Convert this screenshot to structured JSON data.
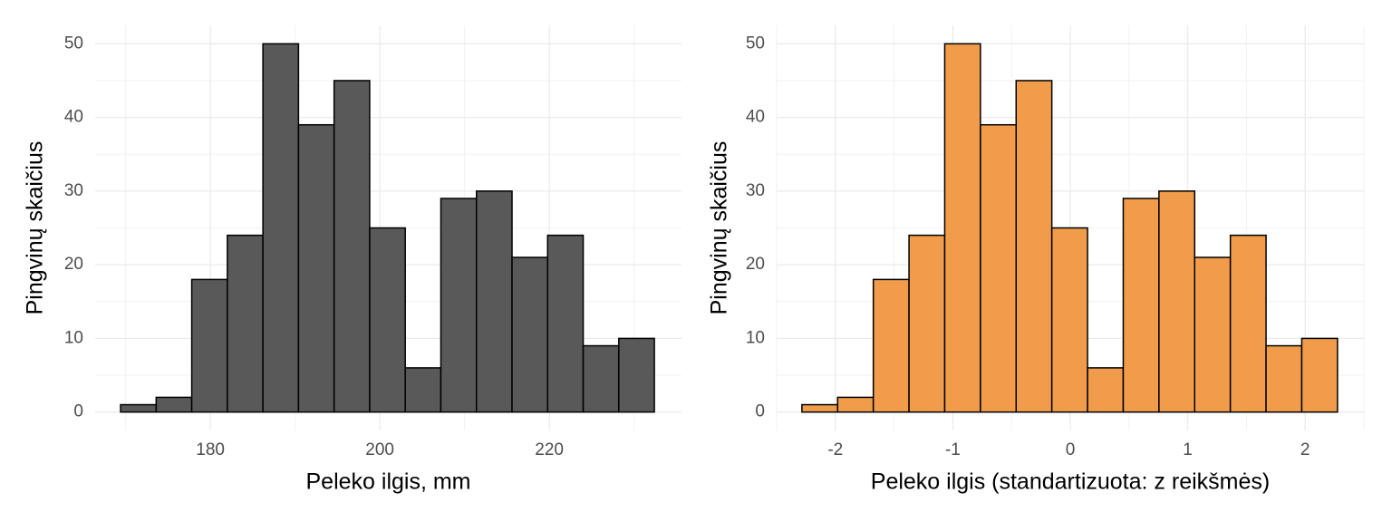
{
  "chart_data": [
    {
      "type": "histogram",
      "xlabel": "Peleko ilgis, mm",
      "ylabel": "Pingvinų skaičius",
      "bins": [
        169.4,
        173.6,
        177.8,
        182.0,
        186.2,
        190.4,
        194.6,
        198.8,
        203.0,
        207.2,
        211.4,
        215.6,
        219.8,
        224.0,
        228.2,
        232.4
      ],
      "values": [
        1,
        2,
        18,
        24,
        50,
        39,
        45,
        25,
        6,
        29,
        30,
        21,
        24,
        9,
        10
      ],
      "color": "#595959",
      "xlim": [
        166.4,
        235.6
      ],
      "xticks": [
        180,
        200,
        220
      ],
      "ylim": [
        -2.5,
        52.5
      ],
      "yticks": [
        0,
        10,
        20,
        30,
        40,
        50
      ],
      "grid": true
    },
    {
      "type": "histogram",
      "xlabel": "Peleko ilgis (standartizuota: z reikšmės)",
      "ylabel": "Pingvinų skaičius",
      "bins": [
        -2.285,
        -1.981,
        -1.677,
        -1.373,
        -1.069,
        -0.765,
        -0.461,
        -0.157,
        0.147,
        0.451,
        0.755,
        1.059,
        1.363,
        1.667,
        1.971,
        2.275
      ],
      "values": [
        1,
        2,
        18,
        24,
        50,
        39,
        45,
        25,
        6,
        29,
        30,
        21,
        24,
        9,
        10
      ],
      "color": "#f09c4a",
      "xlim": [
        -2.5,
        2.5
      ],
      "xticks": [
        -2,
        -1,
        0,
        1,
        2
      ],
      "ylim": [
        -2.5,
        52.5
      ],
      "yticks": [
        0,
        10,
        20,
        30,
        40,
        50
      ],
      "grid": true
    }
  ]
}
